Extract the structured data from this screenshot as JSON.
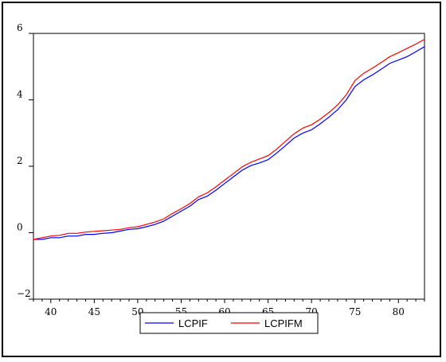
{
  "chart_data": {
    "type": "line",
    "title": "",
    "xlabel": "",
    "ylabel": "",
    "xlim": [
      1938,
      1983
    ],
    "ylim": [
      -2,
      6
    ],
    "x_ticks": [
      1940,
      1945,
      1950,
      1955,
      1960,
      1965,
      1970,
      1975,
      1980
    ],
    "x_tick_labels": [
      "40",
      "45",
      "50",
      "55",
      "60",
      "65",
      "70",
      "75",
      "80"
    ],
    "y_ticks": [
      -2,
      0,
      2,
      4,
      6
    ],
    "y_tick_labels": [
      "-2",
      "0",
      "2",
      "4",
      "6"
    ],
    "grid": false,
    "legend_position": "bottom-center",
    "x": [
      1938,
      1939,
      1940,
      1941,
      1942,
      1943,
      1944,
      1945,
      1946,
      1947,
      1948,
      1949,
      1950,
      1951,
      1952,
      1953,
      1954,
      1955,
      1956,
      1957,
      1958,
      1959,
      1960,
      1961,
      1962,
      1963,
      1964,
      1965,
      1966,
      1967,
      1968,
      1969,
      1970,
      1971,
      1972,
      1973,
      1974,
      1975,
      1976,
      1977,
      1978,
      1979,
      1980,
      1981,
      1982,
      1983
    ],
    "series": [
      {
        "name": "LCPIF",
        "color": "#0000ff",
        "values": [
          -0.2,
          -0.2,
          -0.15,
          -0.15,
          -0.1,
          -0.1,
          -0.05,
          -0.05,
          -0.02,
          0.0,
          0.05,
          0.1,
          0.12,
          0.18,
          0.25,
          0.35,
          0.5,
          0.65,
          0.8,
          1.0,
          1.1,
          1.28,
          1.48,
          1.68,
          1.88,
          2.02,
          2.1,
          2.2,
          2.4,
          2.62,
          2.85,
          3.0,
          3.1,
          3.28,
          3.48,
          3.7,
          4.0,
          4.4,
          4.6,
          4.75,
          4.92,
          5.1,
          5.2,
          5.3,
          5.45,
          5.6
        ]
      },
      {
        "name": "LCPIFM",
        "color": "#ff0000",
        "values": [
          -0.2,
          -0.15,
          -0.1,
          -0.08,
          -0.02,
          -0.02,
          0.02,
          0.04,
          0.06,
          0.08,
          0.1,
          0.15,
          0.18,
          0.25,
          0.32,
          0.42,
          0.58,
          0.72,
          0.88,
          1.08,
          1.2,
          1.38,
          1.58,
          1.78,
          1.98,
          2.12,
          2.22,
          2.32,
          2.52,
          2.75,
          2.98,
          3.15,
          3.25,
          3.42,
          3.62,
          3.85,
          4.15,
          4.58,
          4.8,
          4.95,
          5.12,
          5.3,
          5.42,
          5.55,
          5.68,
          5.82
        ]
      }
    ]
  }
}
